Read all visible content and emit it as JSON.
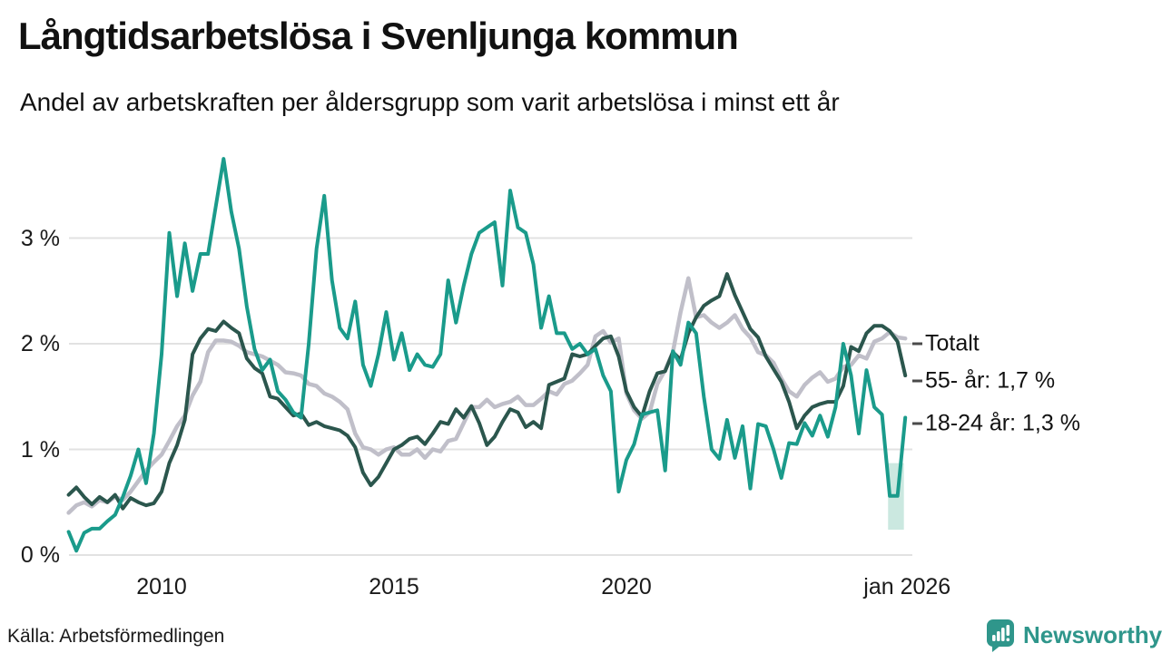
{
  "header": {
    "title": "Långtidsarbetslösa i Svenljunga kommun",
    "subtitle": "Andel av arbetskraften per åldersgrupp som varit arbetslösa i minst ett år"
  },
  "footer": {
    "source": "Källa: Arbetsförmedlingen",
    "brand": "Newsworthy"
  },
  "colors": {
    "brand_teal": "#2f968b",
    "text": "#111111",
    "legend_dash": "#4a4a4a"
  },
  "chart_data": {
    "type": "line",
    "title": "Långtidsarbetslösa i Svenljunga kommun",
    "subtitle": "Andel av arbetskraften per åldersgrupp som varit arbetslösa i minst ett år",
    "unit": "% av arbetskraften",
    "x_axis": {
      "range": [
        2008.0,
        2026.08
      ],
      "ticks": [
        {
          "label": "2010",
          "t": 2010.0
        },
        {
          "label": "2015",
          "t": 2015.0
        },
        {
          "label": "2020",
          "t": 2020.0
        },
        {
          "label": "jan 2026",
          "t": 2026.04
        }
      ]
    },
    "y_axis": {
      "range": [
        0,
        3.83
      ],
      "grid": true,
      "grid_color": "#e2e2e2",
      "ticks": [
        {
          "label": "0 %",
          "value": 0
        },
        {
          "label": "1 %",
          "value": 1
        },
        {
          "label": "2 %",
          "value": 2
        },
        {
          "label": "3 %",
          "value": 3
        }
      ]
    },
    "start_year": 2008,
    "points_per_year": 6,
    "series": [
      {
        "name": "Totalt",
        "legend_label": "Totalt",
        "color": "#c0bfc9",
        "stroke_width": 4.5,
        "values": [
          0.4,
          0.47,
          0.5,
          0.46,
          0.52,
          0.5,
          0.55,
          0.52,
          0.6,
          0.7,
          0.8,
          0.88,
          0.95,
          1.08,
          1.22,
          1.32,
          1.51,
          1.64,
          1.92,
          2.03,
          2.03,
          2.02,
          1.98,
          1.92,
          1.9,
          1.88,
          1.84,
          1.8,
          1.73,
          1.72,
          1.7,
          1.62,
          1.6,
          1.53,
          1.5,
          1.45,
          1.38,
          1.15,
          1.02,
          1.0,
          0.95,
          1.0,
          1.02,
          0.95,
          0.95,
          1.0,
          0.92,
          1.0,
          0.98,
          1.08,
          1.1,
          1.25,
          1.4,
          1.4,
          1.47,
          1.4,
          1.43,
          1.45,
          1.5,
          1.42,
          1.42,
          1.48,
          1.55,
          1.52,
          1.62,
          1.65,
          1.72,
          1.8,
          2.07,
          2.12,
          2.01,
          2.05,
          1.53,
          1.37,
          1.29,
          1.35,
          1.62,
          1.75,
          1.92,
          2.3,
          2.62,
          2.25,
          2.27,
          2.2,
          2.15,
          2.2,
          2.27,
          2.14,
          2.06,
          1.92,
          1.89,
          1.82,
          1.67,
          1.55,
          1.5,
          1.61,
          1.68,
          1.73,
          1.64,
          1.67,
          1.78,
          1.8,
          1.89,
          1.86,
          2.02,
          2.05,
          2.11,
          2.06,
          2.05
        ]
      },
      {
        "name": "55- år",
        "legend_label": "55- år: 1,7 %",
        "last_value_label": "1,7 %",
        "color": "#2b564d",
        "stroke_width": 4,
        "values": [
          0.57,
          0.64,
          0.55,
          0.48,
          0.55,
          0.5,
          0.57,
          0.44,
          0.54,
          0.5,
          0.47,
          0.49,
          0.6,
          0.87,
          1.04,
          1.28,
          1.9,
          2.05,
          2.14,
          2.12,
          2.21,
          2.15,
          2.1,
          1.86,
          1.77,
          1.72,
          1.5,
          1.48,
          1.4,
          1.32,
          1.34,
          1.23,
          1.26,
          1.22,
          1.2,
          1.18,
          1.13,
          1.02,
          0.78,
          0.66,
          0.74,
          0.87,
          1.0,
          1.04,
          1.1,
          1.12,
          1.05,
          1.15,
          1.26,
          1.24,
          1.38,
          1.3,
          1.41,
          1.25,
          1.04,
          1.12,
          1.26,
          1.38,
          1.35,
          1.21,
          1.26,
          1.2,
          1.61,
          1.64,
          1.67,
          1.9,
          1.88,
          1.9,
          1.98,
          2.05,
          2.07,
          1.88,
          1.55,
          1.4,
          1.31,
          1.55,
          1.72,
          1.74,
          1.92,
          1.85,
          2.1,
          2.25,
          2.36,
          2.41,
          2.45,
          2.66,
          2.46,
          2.3,
          2.14,
          2.06,
          1.88,
          1.76,
          1.64,
          1.45,
          1.2,
          1.32,
          1.4,
          1.43,
          1.45,
          1.45,
          1.6,
          1.97,
          1.93,
          2.1,
          2.17,
          2.17,
          2.12,
          2.02,
          1.7
        ]
      },
      {
        "name": "18-24 år",
        "legend_label": "18-24 år: 1,3 %",
        "last_value_label": "1,3 %",
        "color": "#1a9b8b",
        "stroke_width": 4,
        "values": [
          0.22,
          0.04,
          0.21,
          0.25,
          0.25,
          0.32,
          0.38,
          0.55,
          0.75,
          1.0,
          0.68,
          1.15,
          1.9,
          3.05,
          2.45,
          2.95,
          2.5,
          2.85,
          2.85,
          3.3,
          3.75,
          3.25,
          2.9,
          2.35,
          1.95,
          1.75,
          1.85,
          1.55,
          1.47,
          1.35,
          1.3,
          2.0,
          2.9,
          3.4,
          2.6,
          2.15,
          2.05,
          2.4,
          1.8,
          1.6,
          1.9,
          2.3,
          1.85,
          2.1,
          1.75,
          1.9,
          1.8,
          1.78,
          1.9,
          2.6,
          2.2,
          2.55,
          2.85,
          3.05,
          3.1,
          3.15,
          2.55,
          3.45,
          3.1,
          3.05,
          2.75,
          2.15,
          2.45,
          2.1,
          2.1,
          1.95,
          2.0,
          1.9,
          1.95,
          1.7,
          1.55,
          0.6,
          0.9,
          1.05,
          1.33,
          1.35,
          1.37,
          0.8,
          1.93,
          1.8,
          2.2,
          2.1,
          1.5,
          1.0,
          0.91,
          1.28,
          0.92,
          1.22,
          0.63,
          1.24,
          1.22,
          1.0,
          0.73,
          1.06,
          1.05,
          1.25,
          1.13,
          1.32,
          1.12,
          1.4,
          2.0,
          1.7,
          1.15,
          1.75,
          1.4,
          1.33,
          0.56,
          0.56,
          1.3
        ]
      }
    ],
    "uncertainty_band": {
      "series": "18-24 år",
      "t_start": 2025.63,
      "t_end": 2025.97,
      "v_top": 0.87,
      "v_bottom": 0.24,
      "color": "#a9d8cc",
      "opacity": 0.6
    },
    "legend_position": "right-of-line-ends"
  }
}
